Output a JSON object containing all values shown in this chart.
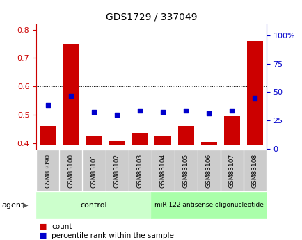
{
  "title": "GDS1729 / 337049",
  "categories": [
    "GSM83090",
    "GSM83100",
    "GSM83101",
    "GSM83102",
    "GSM83103",
    "GSM83104",
    "GSM83105",
    "GSM83106",
    "GSM83107",
    "GSM83108"
  ],
  "bar_values": [
    0.46,
    0.75,
    0.425,
    0.41,
    0.435,
    0.425,
    0.46,
    0.405,
    0.495,
    0.76
  ],
  "scatter_values": [
    0.535,
    0.565,
    0.51,
    0.5,
    0.515,
    0.51,
    0.515,
    0.505,
    0.515,
    0.56
  ],
  "bar_color": "#cc0000",
  "scatter_color": "#0000cc",
  "ylim_left": [
    0.38,
    0.82
  ],
  "ylim_right": [
    0,
    110
  ],
  "yticks_left": [
    0.4,
    0.5,
    0.6,
    0.7,
    0.8
  ],
  "yticks_right": [
    0,
    25,
    50,
    75,
    100
  ],
  "ytick_labels_left": [
    "0.4",
    "0.5",
    "0.6",
    "0.7",
    "0.8"
  ],
  "ytick_labels_right": [
    "0",
    "25",
    "50",
    "75",
    "100%"
  ],
  "bar_bottom": 0.395,
  "grid_color": "black",
  "background_color": "white",
  "control_label": "control",
  "treatment_label": "miR-122 antisense oligonucleotide",
  "agent_label": "agent",
  "legend_count_label": "count",
  "legend_pct_label": "percentile rank within the sample",
  "control_color": "#ccffcc",
  "treatment_color": "#aaffaa",
  "ticker_bg_color": "#cccccc",
  "bar_width": 0.7
}
